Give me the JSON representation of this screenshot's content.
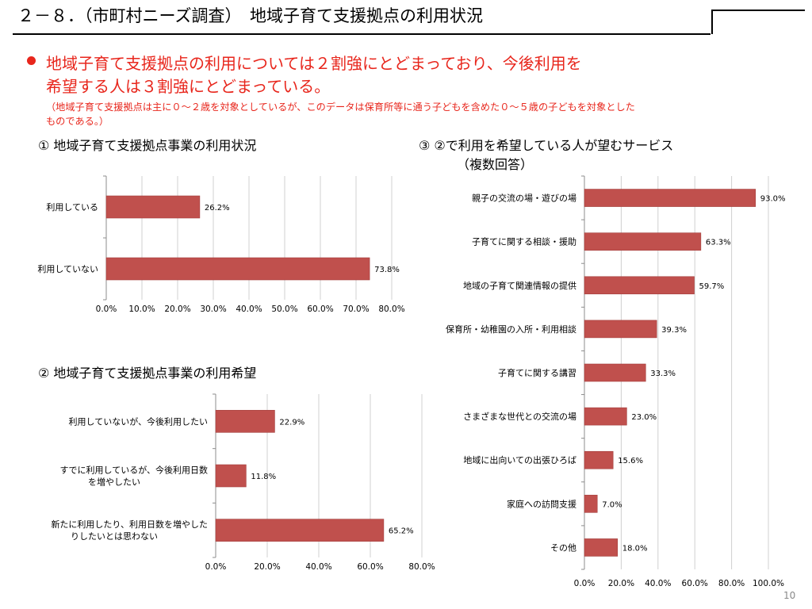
{
  "header": {
    "title": "２－８．（市町村ニーズ調査）　地域子育て支援拠点の利用状況"
  },
  "bullet": {
    "line1": "地域子育て支援拠点の利用については２割強にとどまっており、今後利用を",
    "line2": "希望する人は３割強にとどまっている。",
    "note1": "（地域子育て支援拠点は主に０～２歳を対象としているが、このデータは保育所等に通う子どもを含めた０～５歳の子どもを対象とした",
    "note2": "ものである。）"
  },
  "chart_data": [
    {
      "heading": "① 地域子育て支援拠点事業の利用状況",
      "type": "bar",
      "orientation": "horizontal",
      "categories": [
        [
          "利用している"
        ],
        [
          "利用していない"
        ]
      ],
      "values": [
        26.2,
        73.8
      ],
      "value_labels": [
        "26.2%",
        "73.8%"
      ],
      "xlim": [
        0,
        80
      ],
      "ticks": [
        "0.0%",
        "10.0%",
        "20.0%",
        "30.0%",
        "40.0%",
        "50.0%",
        "60.0%",
        "70.0%",
        "80.0%"
      ],
      "bar_color": "#c0504d",
      "grid": true
    },
    {
      "heading": "② 地域子育て支援拠点事業の利用希望",
      "type": "bar",
      "orientation": "horizontal",
      "categories": [
        [
          "利用していないが、今後利用したい"
        ],
        [
          "すでに利用しているが、今後利用日数",
          "を増やしたい"
        ],
        [
          "新たに利用したり、利用日数を増やした",
          "りしたいとは思わない"
        ]
      ],
      "values": [
        22.9,
        11.8,
        65.2
      ],
      "value_labels": [
        "22.9%",
        "11.8%",
        "65.2%"
      ],
      "xlim": [
        0,
        80
      ],
      "ticks": [
        "0.0%",
        "20.0%",
        "40.0%",
        "60.0%",
        "80.0%"
      ],
      "bar_color": "#c0504d",
      "grid": true
    },
    {
      "heading": "③ ②で利用を希望している人が望むサービス",
      "subheading": "（複数回答）",
      "type": "bar",
      "orientation": "horizontal",
      "categories": [
        [
          "親子の交流の場・遊びの場"
        ],
        [
          "子育てに関する相談・援助"
        ],
        [
          "地域の子育て関連情報の提供"
        ],
        [
          "保育所・幼稚園の入所・利用相談"
        ],
        [
          "子育てに関する講習"
        ],
        [
          "さまざまな世代との交流の場"
        ],
        [
          "地域に出向いての出張ひろば"
        ],
        [
          "家庭への訪問支援"
        ],
        [
          "その他"
        ]
      ],
      "values": [
        93.0,
        63.3,
        59.7,
        39.3,
        33.3,
        23.0,
        15.6,
        7.0,
        18.0
      ],
      "value_labels": [
        "93.0%",
        "63.3%",
        "59.7%",
        "39.3%",
        "33.3%",
        "23.0%",
        "15.6%",
        "7.0%",
        "18.0%"
      ],
      "xlim": [
        0,
        100
      ],
      "ticks": [
        "0.0%",
        "20.0%",
        "40.0%",
        "60.0%",
        "80.0%",
        "100.0%"
      ],
      "bar_color": "#c0504d",
      "grid": true
    }
  ],
  "footer": {
    "page_number": "10"
  }
}
